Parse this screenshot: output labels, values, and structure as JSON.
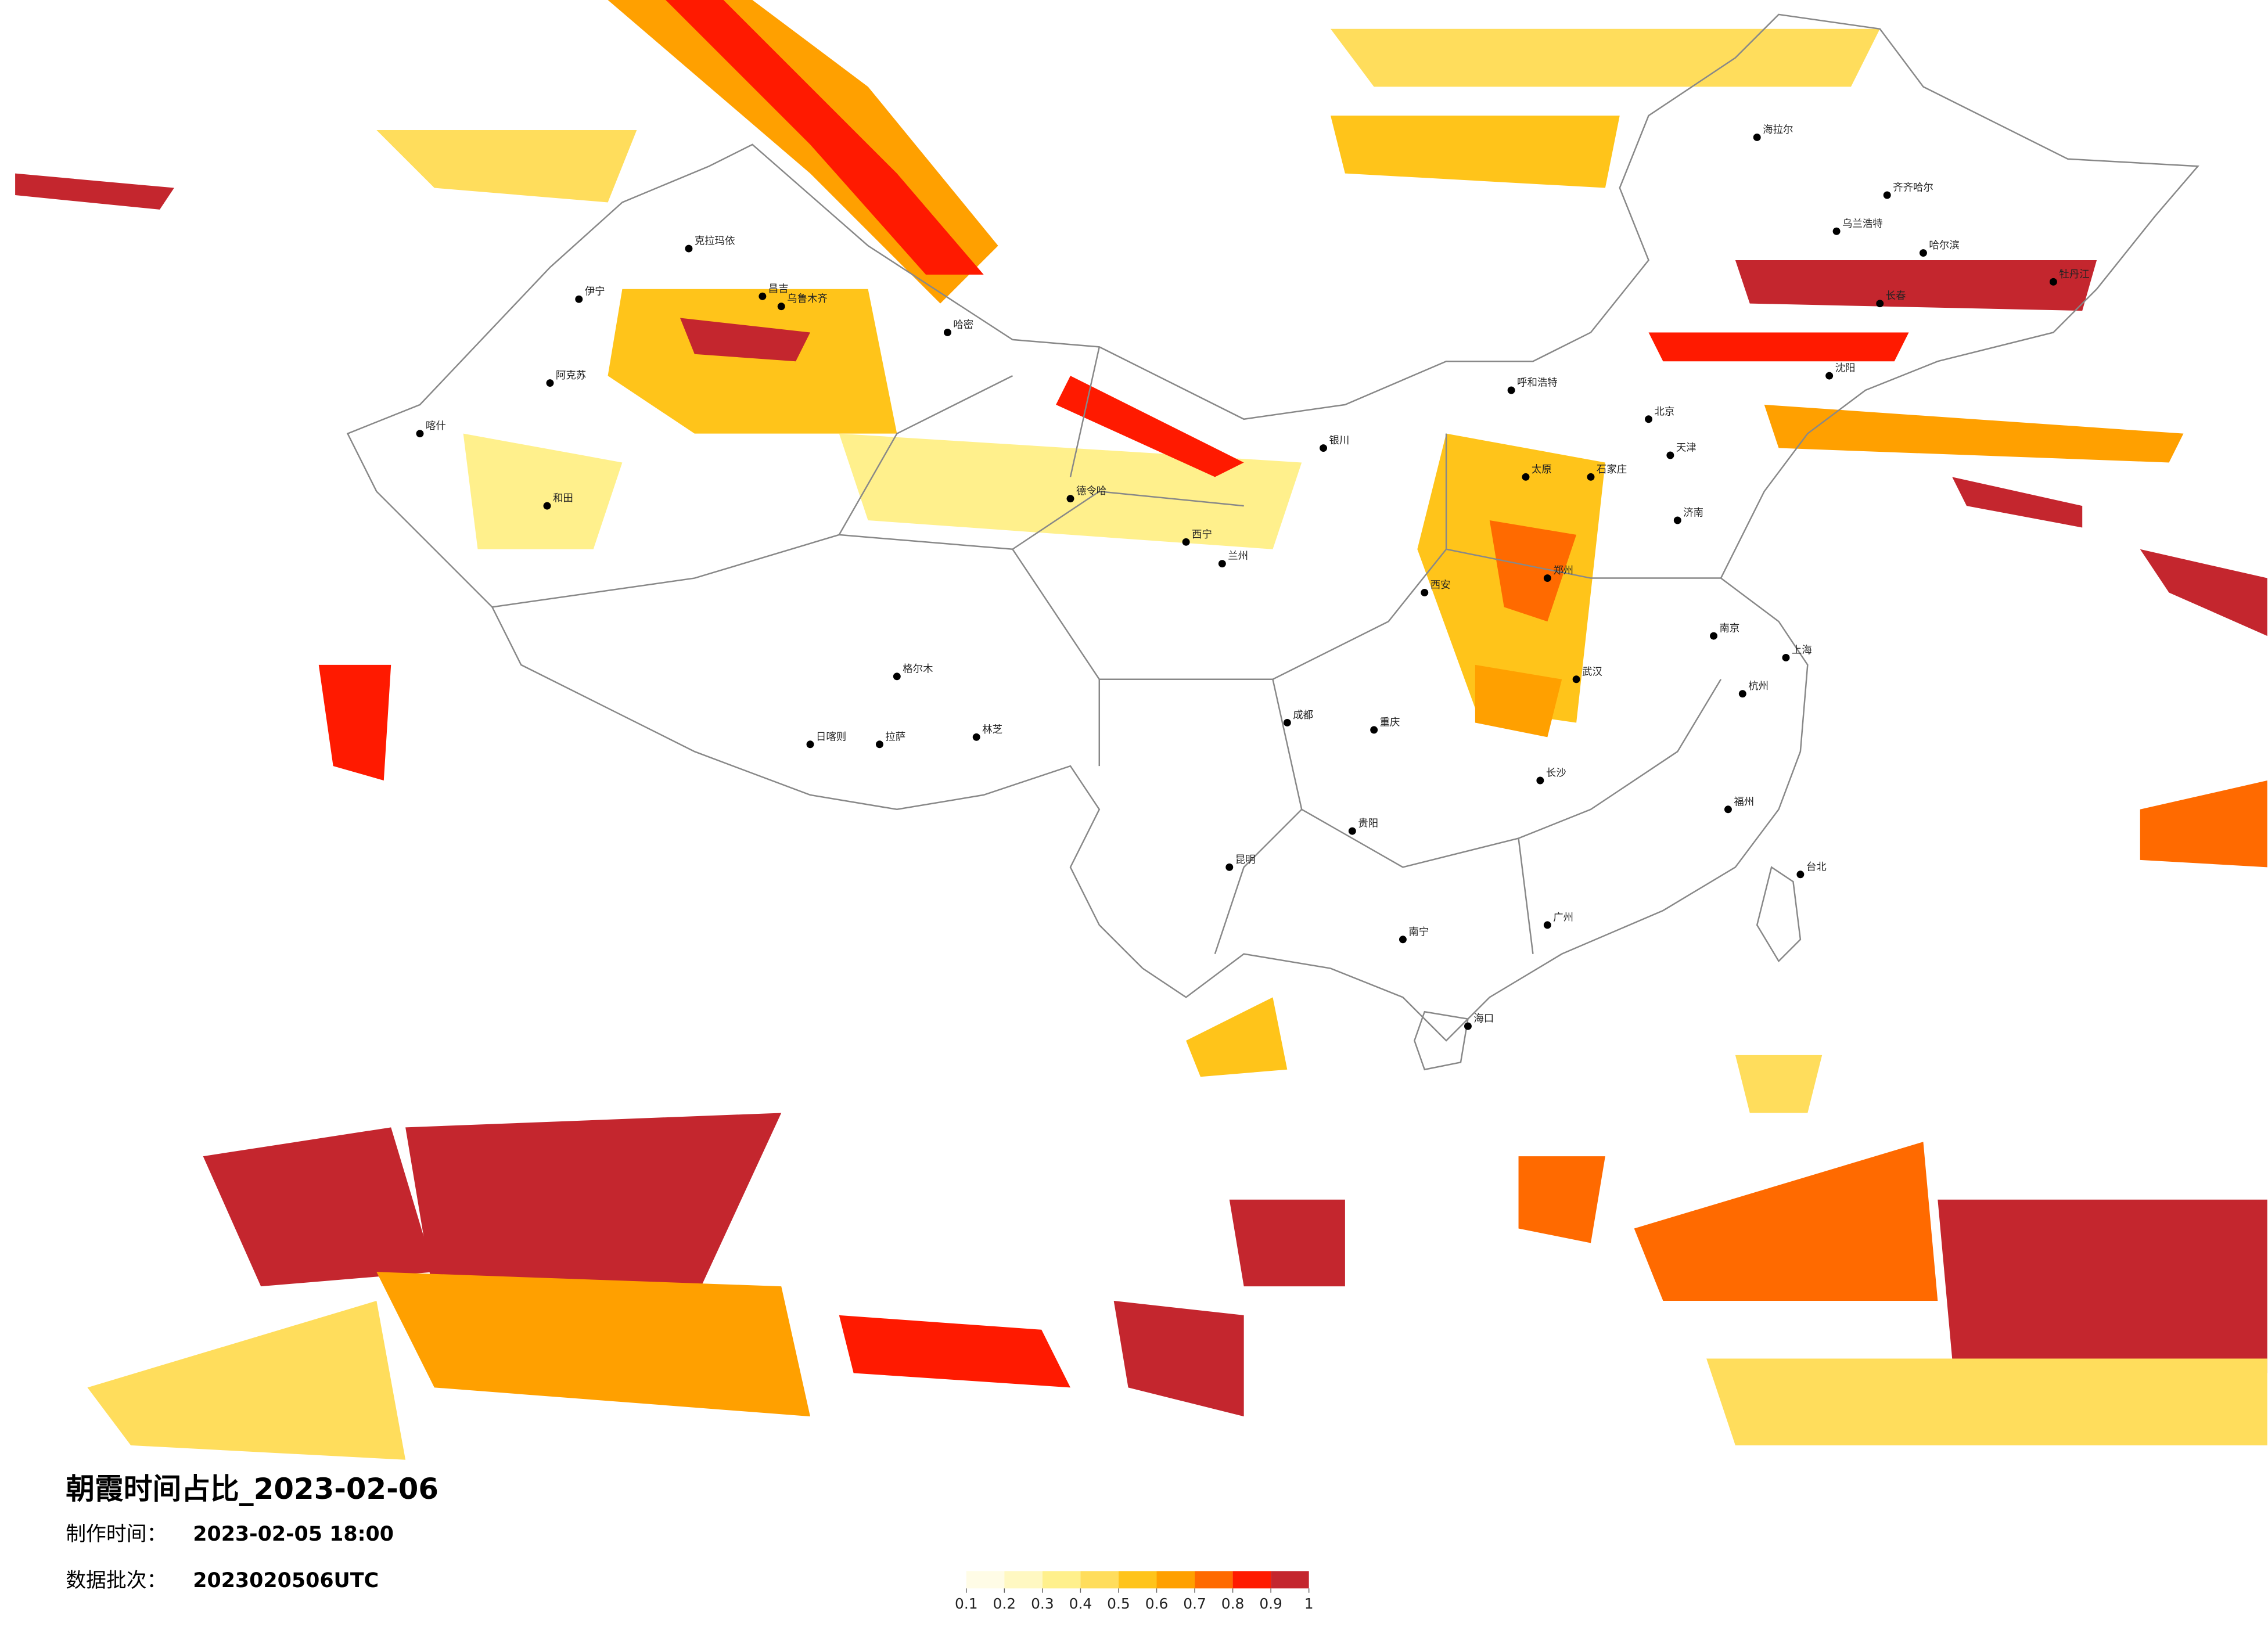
{
  "title": "朝霞时间占比_2023-02-06",
  "production_time": {
    "label": "制作时间：",
    "value": "2023-02-05 18:00"
  },
  "data_batch": {
    "label": "数据批次：",
    "value": "2023020506UTC"
  },
  "legend": {
    "ticks": [
      0.1,
      0.2,
      0.3,
      0.4,
      0.5,
      0.6,
      0.7,
      0.8,
      0.9,
      1
    ],
    "colors": [
      "#fffce6",
      "#fff8c2",
      "#fff08c",
      "#ffdd5c",
      "#ffc41a",
      "#ffa000",
      "#ff6a00",
      "#ff1a00",
      "#c4262e"
    ]
  },
  "cities": [
    {
      "name": "克拉玛依"
    },
    {
      "name": "伊宁"
    },
    {
      "name": "昌吉"
    },
    {
      "name": "乌鲁木齐"
    },
    {
      "name": "哈密"
    },
    {
      "name": "阿克苏"
    },
    {
      "name": "和田"
    },
    {
      "name": "喀什"
    },
    {
      "name": "格尔木"
    },
    {
      "name": "德令哈"
    },
    {
      "name": "拉萨"
    },
    {
      "name": "日喀则"
    },
    {
      "name": "林芝"
    },
    {
      "name": "西宁"
    },
    {
      "name": "兰州"
    },
    {
      "name": "银川"
    },
    {
      "name": "呼和浩特"
    },
    {
      "name": "北京"
    },
    {
      "name": "天津"
    },
    {
      "name": "石家庄"
    },
    {
      "name": "太原"
    },
    {
      "name": "济南"
    },
    {
      "name": "郑州"
    },
    {
      "name": "西安"
    },
    {
      "name": "成都"
    },
    {
      "name": "重庆"
    },
    {
      "name": "贵阳"
    },
    {
      "name": "昆明"
    },
    {
      "name": "南宁"
    },
    {
      "name": "广州"
    },
    {
      "name": "长沙"
    },
    {
      "name": "武汉"
    },
    {
      "name": "南京"
    },
    {
      "name": "上海"
    },
    {
      "name": "杭州"
    },
    {
      "name": "福州"
    },
    {
      "name": "台北"
    },
    {
      "name": "海口"
    },
    {
      "name": "沈阳"
    },
    {
      "name": "长春"
    },
    {
      "name": "哈尔滨"
    },
    {
      "name": "海拉尔"
    },
    {
      "name": "齐齐哈尔"
    },
    {
      "name": "牡丹江"
    },
    {
      "name": "乌兰浩特"
    }
  ]
}
